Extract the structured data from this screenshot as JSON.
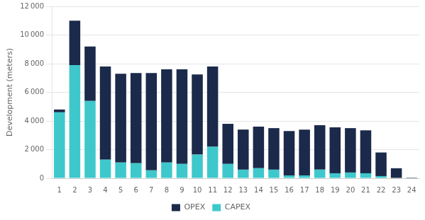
{
  "chart_data": {
    "type": "bar",
    "categories": [
      "1",
      "2",
      "3",
      "4",
      "5",
      "6",
      "7",
      "8",
      "9",
      "10",
      "11",
      "12",
      "13",
      "14",
      "15",
      "16",
      "17",
      "18",
      "19",
      "20",
      "21",
      "22",
      "23",
      "24"
    ],
    "series": [
      {
        "name": "CAPEX",
        "color": "#3ec8cc",
        "values": [
          4600,
          7900,
          5400,
          1300,
          1100,
          1050,
          550,
          1100,
          1000,
          1650,
          2200,
          1000,
          600,
          700,
          600,
          200,
          200,
          600,
          350,
          400,
          350,
          150,
          0,
          0
        ]
      },
      {
        "name": "OPEX",
        "color": "#1b2a4a",
        "values": [
          200,
          3100,
          3800,
          6500,
          6200,
          6300,
          6800,
          6500,
          6600,
          5600,
          5600,
          2800,
          2800,
          2900,
          2900,
          3100,
          3200,
          3100,
          3200,
          3100,
          3000,
          1650,
          700,
          50
        ]
      }
    ],
    "y_label": "Development (meters)",
    "ylim": [
      0,
      12000
    ],
    "yticks": [
      0,
      {
        "value": 2000,
        "label": "2 000"
      },
      {
        "value": 4000,
        "label": "4 000"
      },
      {
        "value": 6000,
        "label": "6 000"
      },
      {
        "value": 8000,
        "label": "8 000"
      },
      {
        "value": 10000,
        "label": "10 000"
      },
      {
        "value": 12000,
        "label": "12 000"
      }
    ],
    "stacked": true,
    "grid": true,
    "legend": "bottom"
  }
}
